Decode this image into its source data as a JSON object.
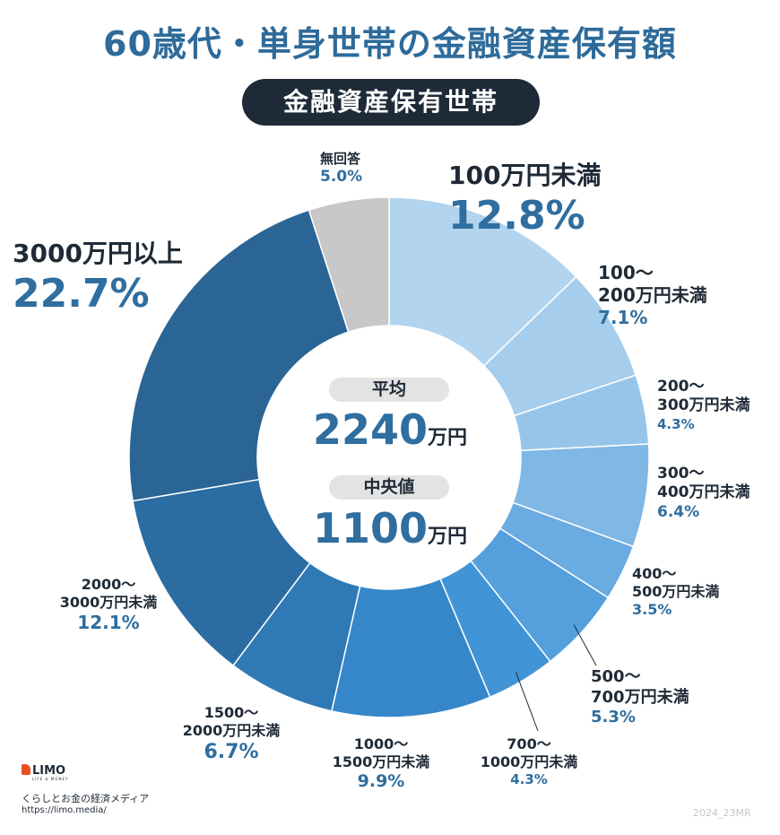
{
  "title": "60歳代・単身世帯の金融資産保有額",
  "subtitle": "金融資産保有世帯",
  "center": {
    "average_label": "平均",
    "average_value": "2240",
    "median_label": "中央値",
    "median_value": "1100",
    "unit": "万円"
  },
  "chart_data": {
    "type": "pie",
    "donut": true,
    "unit": "%",
    "categories": [
      [
        "100万円未満"
      ],
      [
        "100〜",
        "200万円未満"
      ],
      [
        "200〜",
        "300万円未満"
      ],
      [
        "300〜",
        "400万円未満"
      ],
      [
        "400〜",
        "500万円未満"
      ],
      [
        "500〜",
        "700万円未満"
      ],
      [
        "700〜",
        "1000万円未満"
      ],
      [
        "1000〜",
        "1500万円未満"
      ],
      [
        "1500〜",
        "2000万円未満"
      ],
      [
        "2000〜",
        "3000万円未満"
      ],
      [
        "3000万円以上"
      ],
      [
        "無回答"
      ]
    ],
    "values": [
      12.8,
      7.1,
      4.3,
      6.4,
      3.5,
      5.3,
      4.3,
      9.9,
      6.7,
      12.1,
      22.7,
      5.0
    ],
    "value_labels": [
      "12.8%",
      "7.1%",
      "4.3%",
      "6.4%",
      "3.5%",
      "5.3%",
      "4.3%",
      "9.9%",
      "6.7%",
      "12.1%",
      "22.7%",
      "5.0%"
    ],
    "colors": [
      "#b2d4ee",
      "#a6cdec",
      "#97c5ea",
      "#7fb7e5",
      "#6aabe1",
      "#559fdc",
      "#4194d6",
      "#3687c9",
      "#2f79b5",
      "#2b6da3",
      "#2a6595",
      "#c8c8c8"
    ]
  },
  "footer": {
    "logo": "LIMO",
    "logo_sub": "LIFE & MONEY",
    "media": "くらしとお金の経済メディア",
    "url": "https://limo.media/",
    "code": "2024_23MR"
  }
}
